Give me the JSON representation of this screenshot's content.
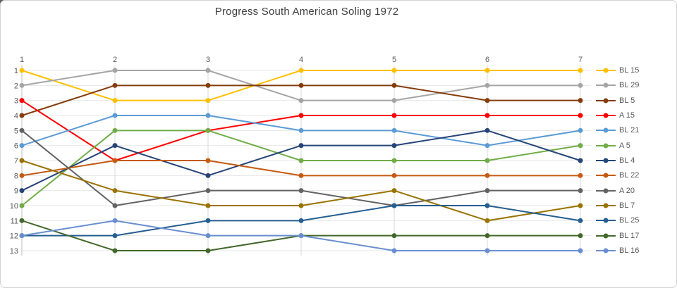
{
  "chart_data": {
    "type": "line",
    "title": "Progress South American Soling 1972",
    "xlabel": "",
    "ylabel": "",
    "x": [
      1,
      2,
      3,
      4,
      5,
      6,
      7
    ],
    "x_ticks": [
      "1",
      "2",
      "3",
      "4",
      "5",
      "6",
      "7"
    ],
    "y_ticks": [
      "1",
      "2",
      "3",
      "4",
      "5",
      "6",
      "7",
      "8",
      "9",
      "10",
      "11",
      "12",
      "13"
    ],
    "y_axis": {
      "min": 1,
      "max": 13,
      "inverted": true
    },
    "grid": true,
    "legend_position": "right",
    "series": [
      {
        "name": "BL 15",
        "color": "#FFC000",
        "values": [
          1,
          3,
          3,
          1,
          1,
          1,
          1
        ]
      },
      {
        "name": "BL 29",
        "color": "#A5A5A5",
        "values": [
          2,
          1,
          1,
          3,
          3,
          2,
          2
        ]
      },
      {
        "name": "BL 5",
        "color": "#843C0C",
        "values": [
          4,
          2,
          2,
          2,
          2,
          3,
          3
        ]
      },
      {
        "name": "A 15",
        "color": "#FF0000",
        "values": [
          3,
          7,
          5,
          4,
          4,
          4,
          4
        ]
      },
      {
        "name": "BL 21",
        "color": "#5B9BD5",
        "values": [
          6,
          4,
          4,
          5,
          5,
          6,
          5
        ]
      },
      {
        "name": "A 5",
        "color": "#70AD47",
        "values": [
          10,
          5,
          5,
          7,
          7,
          7,
          6
        ]
      },
      {
        "name": "BL 4",
        "color": "#264478",
        "values": [
          9,
          6,
          8,
          6,
          6,
          5,
          7
        ]
      },
      {
        "name": "BL 22",
        "color": "#C55A11",
        "values": [
          8,
          7,
          7,
          8,
          8,
          8,
          8
        ]
      },
      {
        "name": "A 20",
        "color": "#636363",
        "values": [
          5,
          10,
          9,
          9,
          10,
          9,
          9
        ]
      },
      {
        "name": "BL 7",
        "color": "#997300",
        "values": [
          7,
          9,
          10,
          10,
          9,
          11,
          10
        ]
      },
      {
        "name": "BL 25",
        "color": "#255E91",
        "values": [
          12,
          12,
          11,
          11,
          10,
          10,
          11
        ]
      },
      {
        "name": "BL 17",
        "color": "#43682B",
        "values": [
          11,
          13,
          13,
          12,
          12,
          12,
          12
        ]
      },
      {
        "name": "BL 16",
        "color": "#698ED0",
        "values": [
          12,
          11,
          12,
          12,
          13,
          13,
          13
        ]
      }
    ]
  },
  "colors": {
    "title": "#3F3F3F",
    "axis_label": "#595959",
    "h_gridline": "#E7E7E7",
    "v_gridline": "#D9D9D9",
    "axis_line": "#BFBFBF",
    "frame_border": "#D2D2D2",
    "background": "#FFFFFF"
  }
}
